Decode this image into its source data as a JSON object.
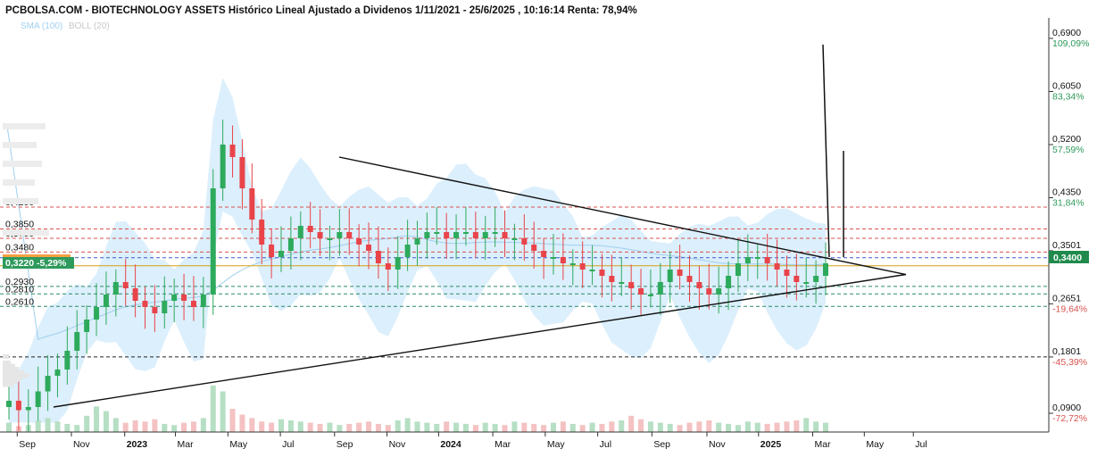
{
  "title": "PCBOLSA.COM - BIOTECHNOLOGY ASSETS Histórico Lineal Ajustado a Dividenos 1/11/2021 - 25/6/2025 , 10:16:14 Renta: 78,94%",
  "indicators": {
    "sma": "SMA (100)",
    "boll": "BOLL (20)"
  },
  "colors": {
    "up": "#2eaa5c",
    "down": "#e8444a",
    "band": "#d6ecfb",
    "sma": "#9fcfee",
    "last_tag": "#1f8a4c",
    "left_tag": "#2e9a5c",
    "orange_tag": "#f5a142"
  },
  "price_axis": [
    {
      "price": "0,6900",
      "pct": "109,09%",
      "v": 0.69,
      "up": true
    },
    {
      "price": "0,6050",
      "pct": "83,34%",
      "v": 0.605,
      "up": true
    },
    {
      "price": "0,5200",
      "pct": "57,59%",
      "v": 0.52,
      "up": true
    },
    {
      "price": "0,4350",
      "pct": "31,84%",
      "v": 0.435,
      "up": true
    },
    {
      "price": "0,3501",
      "pct": "",
      "v": 0.3501,
      "up": true
    },
    {
      "price": "0,2651",
      "pct": "-19,64%",
      "v": 0.2651,
      "up": false
    },
    {
      "price": "0,1801",
      "pct": "-45,39%",
      "v": 0.1801,
      "up": false
    },
    {
      "price": "0,0900",
      "pct": "-72,72%",
      "v": 0.09,
      "up": false
    }
  ],
  "last_price": "0,3400",
  "left_tag": "0,3220 -5,29%",
  "levels": [
    {
      "label": "0,4200",
      "v": 0.42,
      "color": "#d9534f",
      "dash": true
    },
    {
      "label": "0,3850",
      "v": 0.385,
      "color": "#d9534f",
      "dash": true
    },
    {
      "label": "0,3700",
      "v": 0.37,
      "color": "#d9534f",
      "dash": true
    },
    {
      "label": "0,3480",
      "v": 0.348,
      "color": "#d9534f",
      "dash": true
    },
    {
      "label": "",
      "v": 0.339,
      "color": "#3a5fcd",
      "dash": true
    },
    {
      "label": "",
      "v": 0.326,
      "color": "#d4a017",
      "dash": false
    },
    {
      "label": "0,2930",
      "v": 0.293,
      "color": "#2a8a6a",
      "dash": true
    },
    {
      "label": "0,2810",
      "v": 0.281,
      "color": "#2a8a6a",
      "dash": true
    },
    {
      "label": "0,2610",
      "v": 0.261,
      "color": "#2a8a6a",
      "dash": true
    },
    {
      "label": "",
      "v": 0.1801,
      "color": "#222222",
      "dash": true
    }
  ],
  "x_axis": [
    {
      "label": "Sep",
      "year": false,
      "t": 0.02
    },
    {
      "label": "Nov",
      "year": false,
      "t": 0.083
    },
    {
      "label": "2023",
      "year": true,
      "t": 0.145
    },
    {
      "label": "Mar",
      "year": false,
      "t": 0.204
    },
    {
      "label": "May",
      "year": false,
      "t": 0.265
    },
    {
      "label": "Jul",
      "year": false,
      "t": 0.326
    },
    {
      "label": "Sep",
      "year": false,
      "t": 0.389
    },
    {
      "label": "Nov",
      "year": false,
      "t": 0.45
    },
    {
      "label": "2024",
      "year": true,
      "t": 0.51
    },
    {
      "label": "Mar",
      "year": false,
      "t": 0.573
    },
    {
      "label": "May",
      "year": false,
      "t": 0.634
    },
    {
      "label": "Jul",
      "year": false,
      "t": 0.695
    },
    {
      "label": "Sep",
      "year": false,
      "t": 0.758
    },
    {
      "label": "Nov",
      "year": false,
      "t": 0.822
    },
    {
      "label": "2025",
      "year": true,
      "t": 0.882
    },
    {
      "label": "Mar",
      "year": false,
      "t": 0.945
    },
    {
      "label": "May",
      "year": false,
      "t": 1.005
    },
    {
      "label": "Jul",
      "year": false,
      "t": 1.062
    }
  ],
  "chart_data": {
    "type": "candlestick",
    "title": "PCBOLSA.COM - BIOTECHNOLOGY ASSETS Histórico Lineal Ajustado a Dividenos 1/11/2021 - 25/6/2025 , 10:16:14 Renta: 78,94%",
    "y_range": [
      0.06,
      0.72
    ],
    "series_close_approx": [
      0.11,
      0.095,
      0.1,
      0.125,
      0.15,
      0.16,
      0.19,
      0.22,
      0.24,
      0.26,
      0.28,
      0.3,
      0.29,
      0.27,
      0.26,
      0.25,
      0.27,
      0.28,
      0.27,
      0.26,
      0.28,
      0.45,
      0.52,
      0.5,
      0.45,
      0.4,
      0.36,
      0.34,
      0.35,
      0.37,
      0.39,
      0.38,
      0.37,
      0.37,
      0.38,
      0.37,
      0.36,
      0.35,
      0.33,
      0.32,
      0.34,
      0.36,
      0.37,
      0.38,
      0.38,
      0.37,
      0.38,
      0.38,
      0.37,
      0.38,
      0.38,
      0.37,
      0.37,
      0.36,
      0.35,
      0.34,
      0.34,
      0.33,
      0.33,
      0.32,
      0.32,
      0.31,
      0.3,
      0.3,
      0.29,
      0.28,
      0.28,
      0.3,
      0.32,
      0.31,
      0.3,
      0.29,
      0.28,
      0.29,
      0.31,
      0.33,
      0.34,
      0.34,
      0.33,
      0.32,
      0.31,
      0.3,
      0.3,
      0.31,
      0.33
    ],
    "spike_close": 0.34,
    "trendlines": [
      {
        "from": [
          0.375,
          0.5
        ],
        "to": [
          1.16,
          0.31
        ]
      },
      {
        "from": [
          0.03,
          0.1
        ],
        "to": [
          1.16,
          0.31
        ]
      }
    ]
  }
}
